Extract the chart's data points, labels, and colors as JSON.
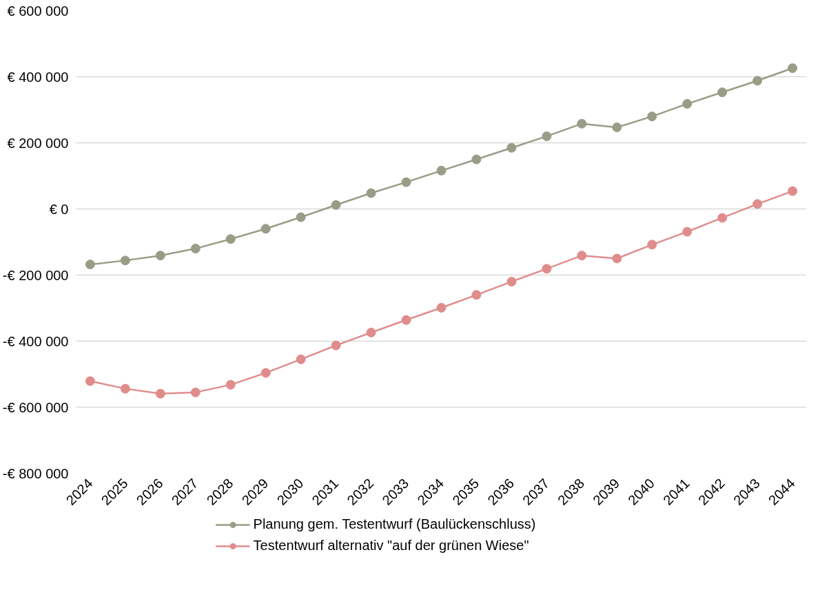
{
  "chart_data": {
    "type": "line",
    "categories": [
      "2024",
      "2025",
      "2026",
      "2027",
      "2028",
      "2029",
      "2030",
      "2031",
      "2032",
      "2033",
      "2034",
      "2035",
      "2036",
      "2037",
      "2038",
      "2039",
      "2040",
      "2041",
      "2042",
      "2043",
      "2044"
    ],
    "series": [
      {
        "name": "Planung gem. Testentwurf (Baulückenschluss)",
        "color": "#9a9c86",
        "values": [
          -168000,
          -156000,
          -141000,
          -120000,
          -91000,
          -60000,
          -25000,
          12000,
          48000,
          81000,
          116000,
          150000,
          185000,
          220000,
          258000,
          247000,
          280000,
          318000,
          353000,
          388000,
          426000
        ]
      },
      {
        "name": "Testentwurf alternativ \"auf der grünen Wiese\"",
        "color": "#e08c8c",
        "values": [
          -521000,
          -544000,
          -559000,
          -555000,
          -532000,
          -496000,
          -455000,
          -413000,
          -374000,
          -336000,
          -299000,
          -260000,
          -220000,
          -181000,
          -141000,
          -150000,
          -108000,
          -69000,
          -27000,
          15000,
          54000
        ]
      }
    ],
    "ylim": [
      -800000,
      600000
    ],
    "yticks": [
      {
        "value": -800000,
        "label": "-€ 800 000"
      },
      {
        "value": -600000,
        "label": "-€ 600 000"
      },
      {
        "value": -400000,
        "label": "-€ 400 000"
      },
      {
        "value": -200000,
        "label": "-€ 200 000"
      },
      {
        "value": 0,
        "label": "€ 0"
      },
      {
        "value": 200000,
        "label": "€ 200 000"
      },
      {
        "value": 400000,
        "label": "€ 400 000"
      },
      {
        "value": 600000,
        "label": "€ 600 000"
      }
    ],
    "grid": "y",
    "legend": "bottom",
    "marker": "circle",
    "line_style": "solid"
  }
}
